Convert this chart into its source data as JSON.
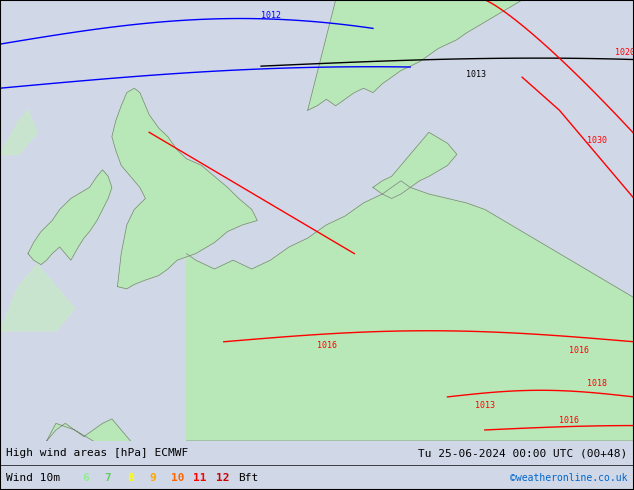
{
  "title_left": "High wind areas [hPa] ECMWF",
  "title_right": "Tu 25-06-2024 00:00 UTC (00+48)",
  "legend_label": "Wind 10m",
  "legend_numbers": [
    "6",
    "7",
    "8",
    "9",
    "10",
    "11",
    "12"
  ],
  "legend_colors": [
    "#90ee90",
    "#66cc66",
    "#ffff00",
    "#ffa500",
    "#ff6600",
    "#ff0000",
    "#cc0000"
  ],
  "legend_suffix": "Bft",
  "copyright": "©weatheronline.co.uk",
  "bg_color": "#d0d8e8",
  "land_color": "#c8e8c8",
  "map_border_color": "#808080",
  "contour_blue_color": "#0000ff",
  "contour_black_color": "#000000",
  "contour_red_color": "#ff0000",
  "wind_green_color": "#90ee90",
  "label_fontsize": 8,
  "title_fontsize": 8
}
